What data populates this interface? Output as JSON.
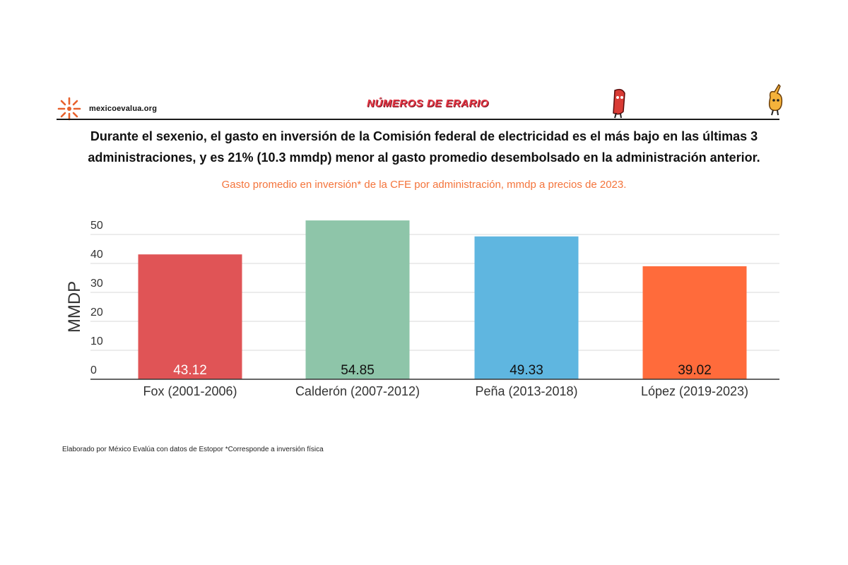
{
  "header": {
    "site": "mexicoevalua.org",
    "brand": "NÚMEROS DE ERARIO"
  },
  "headline_line1": "Durante el sexenio, el gasto en inversión de la Comisión federal de electricidad es el más bajo en las últimas 3",
  "headline_line2": "administraciones, y es 21% (10.3 mmdp) menor al gasto promedio desembolsado en la administración anterior.",
  "footnote": "Elaborado por México Evalúa con datos de Estopor  *Corresponde a inversión física",
  "colors": {
    "accent": "#f4743b",
    "gridline": "#d9d9d9",
    "axis": "#333333"
  },
  "chart_data": {
    "type": "bar",
    "title": "Gasto promedio en inversión* de la CFE por administración, mmdp a precios de 2023.",
    "xlabel": "",
    "ylabel": "MMDP",
    "ylim": [
      0,
      50
    ],
    "yticks": [
      0,
      10,
      20,
      30,
      40,
      50
    ],
    "grid": true,
    "categories": [
      "Fox (2001-2006)",
      "Calderón (2007-2012)",
      "Peña (2013-2018)",
      "López (2019-2023)"
    ],
    "values": [
      43.12,
      54.85,
      49.33,
      39.02
    ],
    "value_labels": [
      "43.12",
      "54.85",
      "49.33",
      "39.02"
    ],
    "bar_colors": [
      "#e05456",
      "#8ec5a9",
      "#5fb6e0",
      "#ff6b3b"
    ],
    "label_colors": [
      "#ffffff",
      "#111111",
      "#111111",
      "#111111"
    ]
  }
}
